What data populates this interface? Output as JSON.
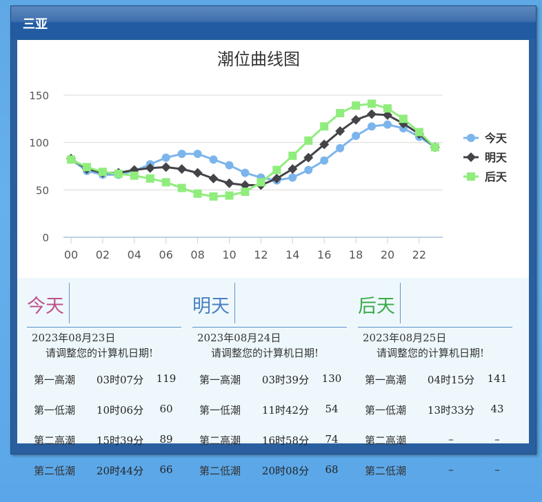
{
  "window": {
    "title": "三亚"
  },
  "chart_data": {
    "type": "line",
    "title": "潮位曲线图",
    "x": [
      "00",
      "01",
      "02",
      "03",
      "04",
      "05",
      "06",
      "07",
      "08",
      "09",
      "10",
      "11",
      "12",
      "13",
      "14",
      "15",
      "16",
      "17",
      "18",
      "19",
      "20",
      "21",
      "22",
      "23"
    ],
    "x_tick_labels": [
      "00",
      "02",
      "04",
      "06",
      "08",
      "10",
      "12",
      "14",
      "16",
      "18",
      "20",
      "22"
    ],
    "ylim": [
      0,
      150
    ],
    "y_ticks": [
      0,
      50,
      100,
      150
    ],
    "grid": true,
    "legend": "right",
    "series": [
      {
        "name": "今天",
        "color": "#7cb5ec",
        "marker": "circle",
        "values": [
          82,
          70,
          66,
          66,
          70,
          77,
          84,
          88,
          88,
          82,
          76,
          68,
          63,
          60,
          63,
          71,
          81,
          94,
          107,
          117,
          119,
          115,
          106,
          95
        ]
      },
      {
        "name": "明天",
        "color": "#434348",
        "marker": "diamond",
        "values": [
          83,
          72,
          68,
          68,
          71,
          73,
          74,
          72,
          68,
          62,
          57,
          55,
          55,
          62,
          72,
          84,
          98,
          112,
          124,
          130,
          129,
          120,
          109,
          95
        ]
      },
      {
        "name": "后天",
        "color": "#90ed7d",
        "marker": "square",
        "values": [
          82,
          74,
          69,
          67,
          65,
          62,
          58,
          52,
          46,
          43,
          44,
          48,
          58,
          71,
          86,
          102,
          117,
          131,
          139,
          141,
          136,
          125,
          111,
          95
        ]
      }
    ]
  },
  "days": [
    {
      "name": "今天",
      "color": "#c0508a",
      "date": "2023年08月23日",
      "note": "请调整您的计算机日期!",
      "tides": [
        {
          "label": "第一高潮",
          "time": "03时07分",
          "value": "119"
        },
        {
          "label": "第一低潮",
          "time": "10时06分",
          "value": "60"
        },
        {
          "label": "第二高潮",
          "time": "15时39分",
          "value": "89"
        },
        {
          "label": "第二低潮",
          "time": "20时44分",
          "value": "66"
        }
      ]
    },
    {
      "name": "明天",
      "color": "#4a7fc0",
      "date": "2023年08月24日",
      "note": "请调整您的计算机日期!",
      "tides": [
        {
          "label": "第一高潮",
          "time": "03时39分",
          "value": "130"
        },
        {
          "label": "第一低潮",
          "time": "11时42分",
          "value": "54"
        },
        {
          "label": "第二高潮",
          "time": "16时58分",
          "value": "74"
        },
        {
          "label": "第二低潮",
          "time": "20时08分",
          "value": "68"
        }
      ]
    },
    {
      "name": "后天",
      "color": "#3aaa4a",
      "date": "2023年08月25日",
      "note": "请调整您的计算机日期!",
      "tides": [
        {
          "label": "第一高潮",
          "time": "04时15分",
          "value": "141"
        },
        {
          "label": "第一低潮",
          "time": "13时33分",
          "value": "43"
        },
        {
          "label": "第二高潮",
          "time": "–",
          "value": "–"
        },
        {
          "label": "第二低潮",
          "time": "–",
          "value": "–"
        }
      ]
    }
  ]
}
